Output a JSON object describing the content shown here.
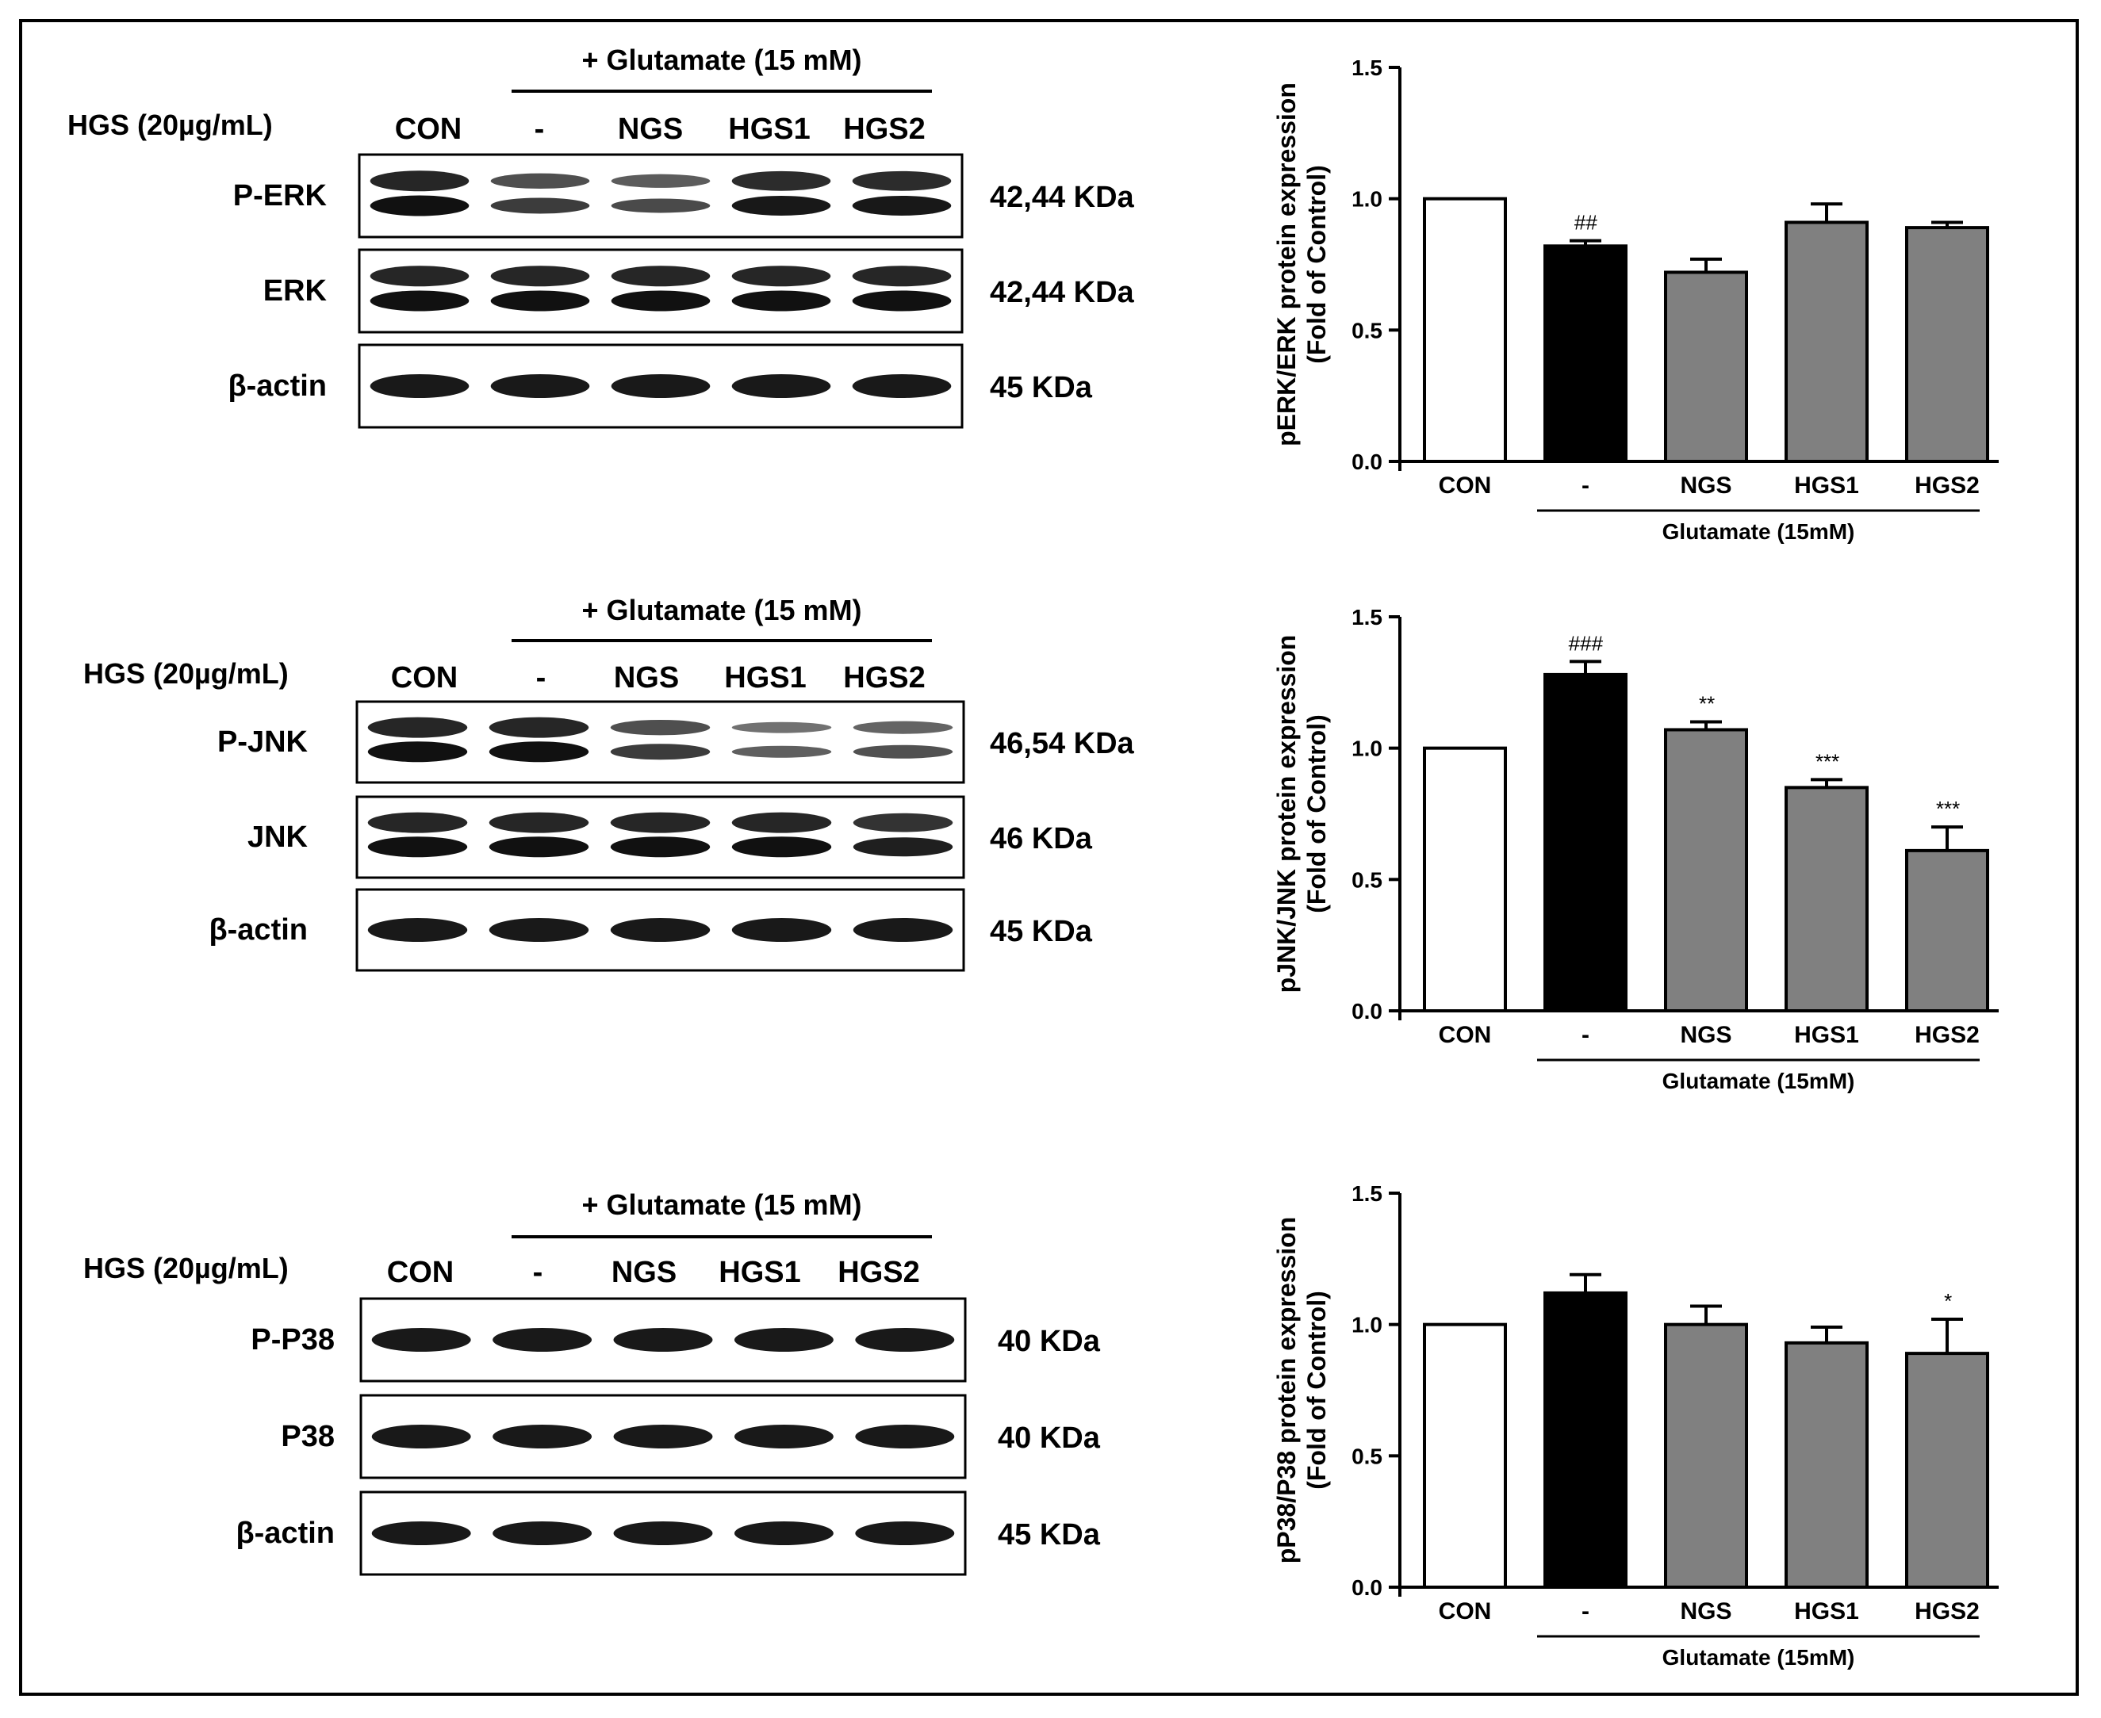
{
  "panels": [
    {
      "id": "erk",
      "blot": {
        "treatment_header": "+ Glutamate (15 mM)",
        "hgs_label": "HGS (20µg/mL)",
        "lanes": [
          "CON",
          "-",
          "NGS",
          "HGS1",
          "HGS2"
        ],
        "rows": [
          {
            "label": "P-ERK",
            "kda": "42,44 KDa"
          },
          {
            "label": "ERK",
            "kda": "42,44 KDa"
          },
          {
            "label": "β-actin",
            "kda": "45 KDa"
          }
        ]
      },
      "chart_data": {
        "type": "bar",
        "categories": [
          "CON",
          "-",
          "NGS",
          "HGS1",
          "HGS2"
        ],
        "values": [
          1.0,
          0.82,
          0.72,
          0.91,
          0.89
        ],
        "errors": [
          0.0,
          0.02,
          0.05,
          0.07,
          0.02
        ],
        "annotations": [
          "",
          "##",
          "",
          "",
          ""
        ],
        "bar_colors": [
          "#ffffff",
          "#000000",
          "#808080",
          "#808080",
          "#808080"
        ],
        "ylabel": "pERK/ERK protein expression",
        "ylabel2": "(Fold of Control)",
        "xgroup_label": "Glutamate (15mM)",
        "ylim": [
          0,
          1.5
        ],
        "yticks": [
          "0.0",
          "0.5",
          "1.0",
          "1.5"
        ]
      }
    },
    {
      "id": "jnk",
      "blot": {
        "treatment_header": "+ Glutamate (15 mM)",
        "hgs_label": "HGS (20µg/mL)",
        "lanes": [
          "CON",
          "-",
          "NGS",
          "HGS1",
          "HGS2"
        ],
        "rows": [
          {
            "label": "P-JNK",
            "kda": "46,54 KDa"
          },
          {
            "label": "JNK",
            "kda": "46 KDa"
          },
          {
            "label": "β-actin",
            "kda": "45 KDa"
          }
        ]
      },
      "chart_data": {
        "type": "bar",
        "categories": [
          "CON",
          "-",
          "NGS",
          "HGS1",
          "HGS2"
        ],
        "values": [
          1.0,
          1.28,
          1.07,
          0.85,
          0.61
        ],
        "errors": [
          0.0,
          0.05,
          0.03,
          0.03,
          0.09
        ],
        "annotations": [
          "",
          "###",
          "**",
          "***",
          "***"
        ],
        "bar_colors": [
          "#ffffff",
          "#000000",
          "#808080",
          "#808080",
          "#808080"
        ],
        "ylabel": "pJNK/JNK protein expression",
        "ylabel2": "(Fold of Control)",
        "xgroup_label": "Glutamate (15mM)",
        "ylim": [
          0,
          1.5
        ],
        "yticks": [
          "0.0",
          "0.5",
          "1.0",
          "1.5"
        ]
      }
    },
    {
      "id": "p38",
      "blot": {
        "treatment_header": "+ Glutamate (15 mM)",
        "hgs_label": "HGS (20µg/mL)",
        "lanes": [
          "CON",
          "-",
          "NGS",
          "HGS1",
          "HGS2"
        ],
        "rows": [
          {
            "label": "P-P38",
            "kda": "40 KDa"
          },
          {
            "label": "P38",
            "kda": "40 KDa"
          },
          {
            "label": "β-actin",
            "kda": "45 KDa"
          }
        ]
      },
      "chart_data": {
        "type": "bar",
        "categories": [
          "CON",
          "-",
          "NGS",
          "HGS1",
          "HGS2"
        ],
        "values": [
          1.0,
          1.12,
          1.0,
          0.93,
          0.89
        ],
        "errors": [
          0.0,
          0.07,
          0.07,
          0.06,
          0.13
        ],
        "annotations": [
          "",
          "",
          "",
          "",
          "*"
        ],
        "bar_colors": [
          "#ffffff",
          "#000000",
          "#808080",
          "#808080",
          "#808080"
        ],
        "ylabel": "pP38/P38 protein expression",
        "ylabel2": "(Fold of Control)",
        "xgroup_label": "Glutamate (15mM)",
        "ylim": [
          0,
          1.5
        ],
        "yticks": [
          "0.0",
          "0.5",
          "1.0",
          "1.5"
        ]
      }
    }
  ]
}
